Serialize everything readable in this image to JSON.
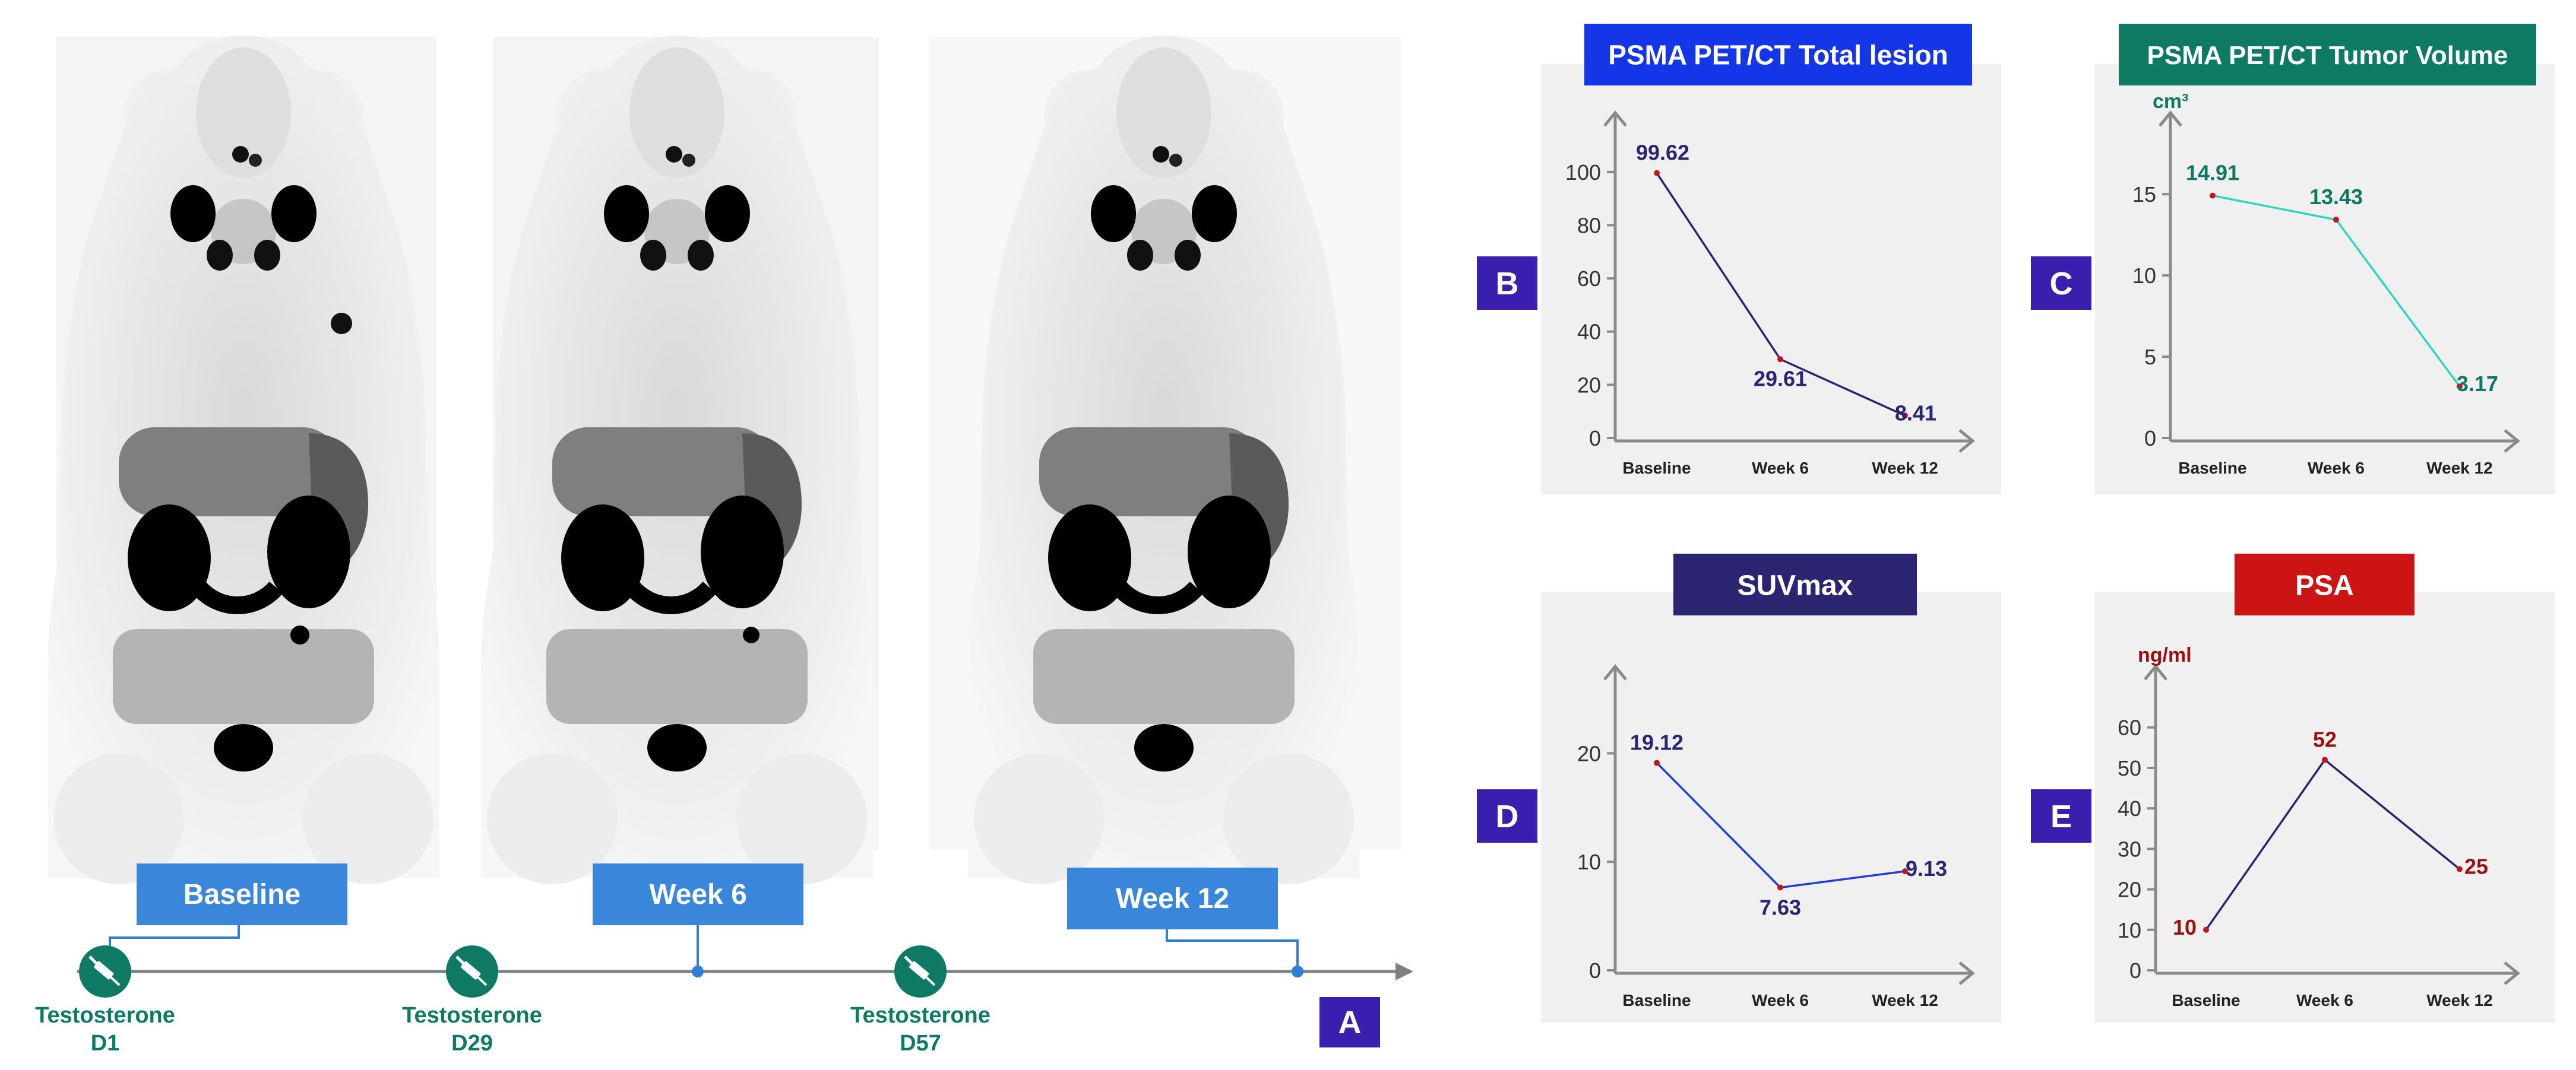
{
  "colors": {
    "timeline_blue": "#2F80D4",
    "label_box_blue": "#3A86DA",
    "teal": "#0E7A64",
    "panel_bg": "#F0F0F0",
    "axis_gray": "#8A8A8A",
    "letter_box": "#3A1FAE",
    "navy": "#2B2470",
    "series_blue": "#1E3FD4",
    "series_teal": "#2ED6C0",
    "dark_red": "#9B1010",
    "psa_red": "#CC1414",
    "total_lesion_title_bg": "#1536E6",
    "tumor_volume_title_bg": "#0E7A64",
    "suvmax_title_bg": "#2B2470",
    "psa_title_bg": "#CC1414"
  },
  "panel_a": {
    "letter": "A",
    "scan_labels": [
      "Baseline",
      "Week 6",
      "Week 12"
    ],
    "injections": [
      {
        "icon": "syringe-icon",
        "line1": "Testosterone",
        "line2": "D1"
      },
      {
        "icon": "syringe-icon",
        "line1": "Testosterone",
        "line2": "D29"
      },
      {
        "icon": "syringe-icon",
        "line1": "Testosterone",
        "line2": "D57"
      }
    ]
  },
  "chart_data": [
    {
      "letter": "B",
      "type": "line",
      "title": "PSMA PET/CT Total lesion",
      "ylabel": "",
      "categories": [
        "Baseline",
        "Week 6",
        "Week 12"
      ],
      "values": [
        99.62,
        29.61,
        8.41
      ],
      "data_labels": [
        "99.62",
        "29.61",
        "8.41"
      ],
      "ylim": [
        0,
        110
      ],
      "yticks": [
        0,
        20,
        40,
        60,
        80,
        100
      ],
      "grid": false
    },
    {
      "letter": "C",
      "type": "line",
      "title": "PSMA PET/CT Tumor Volume",
      "ylabel": "cm³",
      "categories": [
        "Baseline",
        "Week 6",
        "Week 12"
      ],
      "values": [
        14.91,
        13.43,
        3.17
      ],
      "data_labels": [
        "14.91",
        "13.43",
        "3.17"
      ],
      "ylim": [
        0,
        18
      ],
      "yticks": [
        0,
        5,
        10,
        15
      ],
      "grid": false
    },
    {
      "letter": "D",
      "type": "line",
      "title": "SUVmax",
      "ylabel": "",
      "categories": [
        "Baseline",
        "Week 6",
        "Week 12"
      ],
      "values": [
        19.12,
        7.63,
        9.13
      ],
      "data_labels": [
        "19.12",
        "7.63",
        "9.13"
      ],
      "ylim": [
        0,
        25
      ],
      "yticks": [
        0,
        10,
        20
      ],
      "grid": false
    },
    {
      "letter": "E",
      "type": "line",
      "title": "PSA",
      "ylabel": "ng/ml",
      "categories": [
        "Baseline",
        "Week 6",
        "Week 12"
      ],
      "values": [
        10,
        52,
        25
      ],
      "data_labels": [
        "10",
        "52",
        "25"
      ],
      "ylim": [
        0,
        67
      ],
      "yticks": [
        0,
        10,
        20,
        30,
        40,
        50,
        60
      ],
      "grid": false
    }
  ]
}
